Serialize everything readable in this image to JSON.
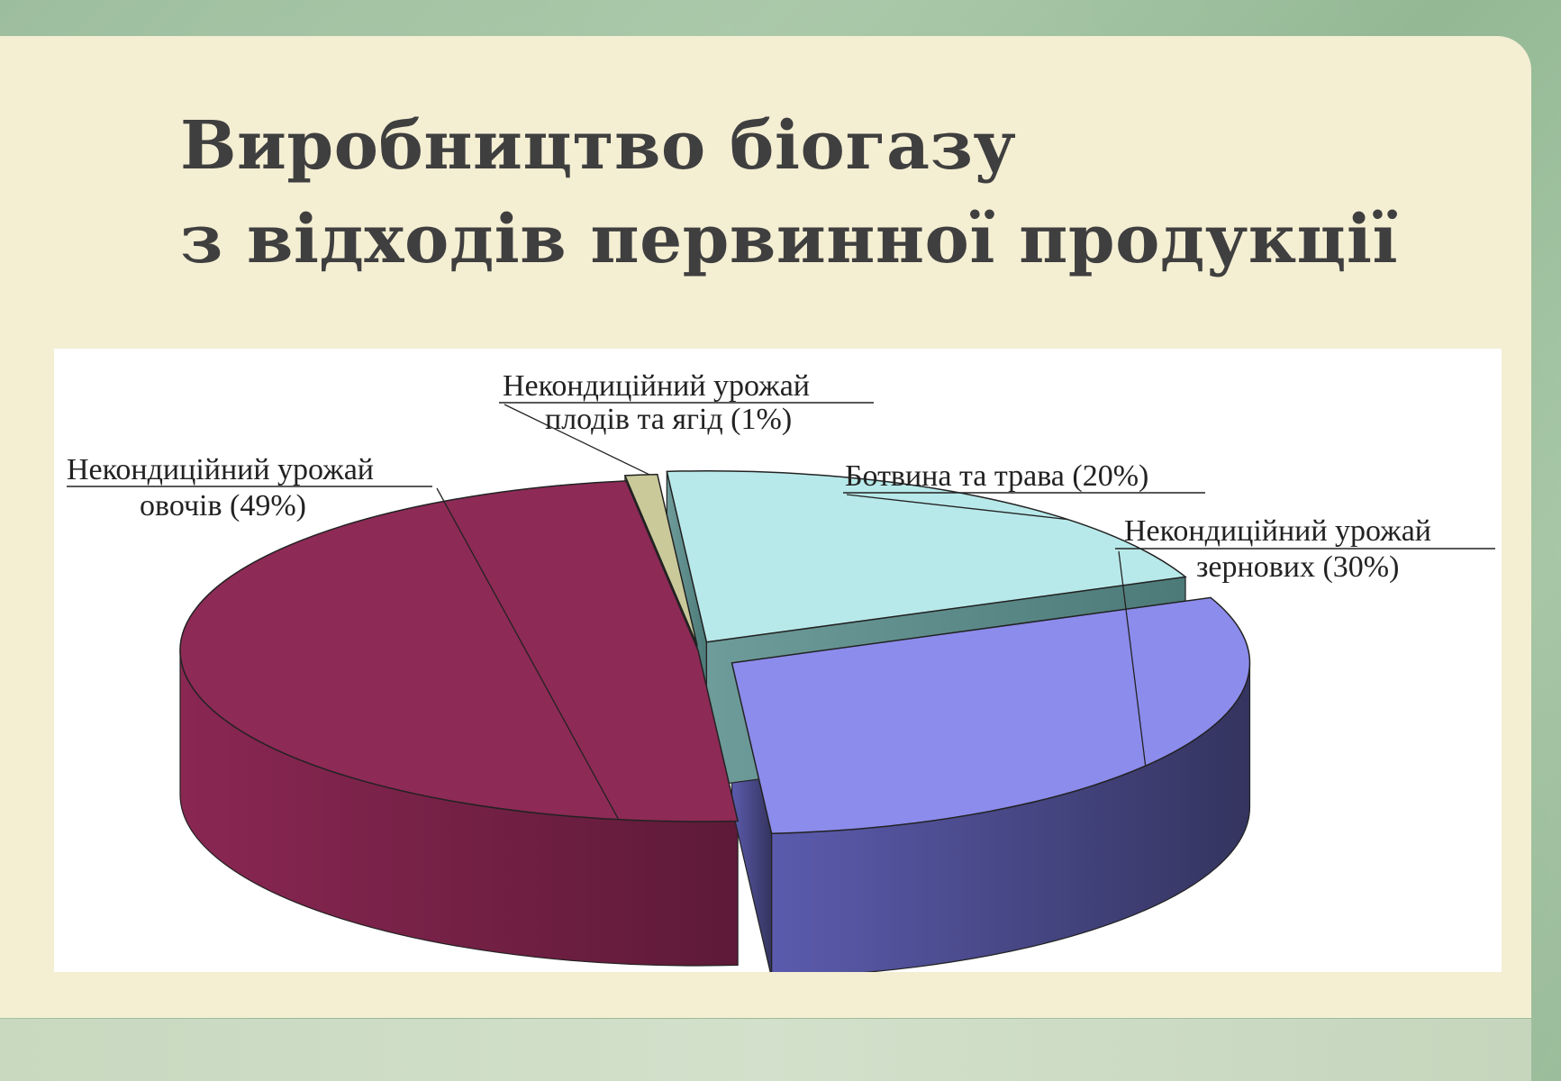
{
  "slide": {
    "title_line1": "Виробництво біогазу",
    "title_line2": "з відходів первинної продукції"
  },
  "chart_data": {
    "type": "pie",
    "three_d": true,
    "slices": [
      {
        "label_line1": "Некондиційний урожай",
        "label_line2": "овочів (49%)",
        "value": 49,
        "color": "#8e2a56"
      },
      {
        "label_line1": "Некондиційний урожай",
        "label_line2": "плодів та ягід (1%)",
        "value": 1,
        "color": "#c9c99a"
      },
      {
        "label_line1": "Ботвина та трава (20%)",
        "label_line2": "",
        "value": 20,
        "color": "#b8e9ea"
      },
      {
        "label_line1": "Некондиційний урожай",
        "label_line2": "зернових (30%)",
        "value": 30,
        "color": "#8c8cec"
      }
    ]
  }
}
